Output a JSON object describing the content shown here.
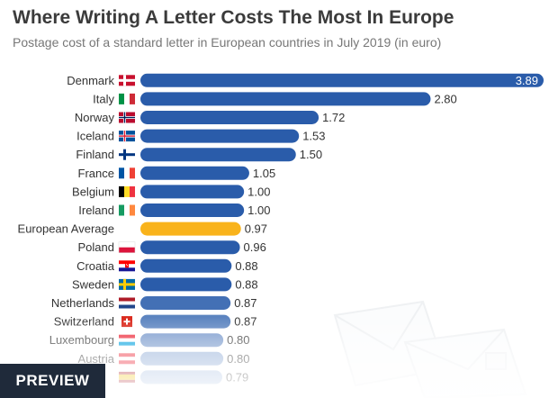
{
  "header": {
    "title": "Where Writing A Letter Costs The Most In Europe",
    "subtitle": "Postage cost of a standard letter in European countries in July 2019 (in euro)"
  },
  "badge": {
    "label": "PREVIEW"
  },
  "colors": {
    "bar": "#2a5caa",
    "highlight": "#f9b31b",
    "label": "#333333",
    "value": "#333333"
  },
  "chart_data": {
    "type": "bar",
    "orientation": "horizontal",
    "title": "Where Writing A Letter Costs The Most In Europe",
    "subtitle": "Postage cost of a standard letter in European countries in July 2019 (in euro)",
    "xlabel": "",
    "ylabel": "",
    "xlim": [
      0,
      3.89
    ],
    "categories": [
      "Denmark",
      "Italy",
      "Norway",
      "Iceland",
      "Finland",
      "France",
      "Belgium",
      "Ireland",
      "European Average",
      "Poland",
      "Croatia",
      "Sweden",
      "Netherlands",
      "Switzerland",
      "Luxembourg",
      "Austria",
      ""
    ],
    "values": [
      3.89,
      2.8,
      1.72,
      1.53,
      1.5,
      1.05,
      1.0,
      1.0,
      0.97,
      0.96,
      0.88,
      0.88,
      0.87,
      0.87,
      0.8,
      0.8,
      0.79
    ],
    "value_labels": [
      "3.89",
      "2.80",
      "1.72",
      "1.53",
      "1.50",
      "1.05",
      "1.00",
      "1.00",
      "0.97",
      "0.96",
      "0.88",
      "0.88",
      "0.87",
      "0.87",
      "0.80",
      "0.80",
      "0.79"
    ],
    "highlight_category": "European Average",
    "flags": [
      "flag-denmark",
      "flag-italy",
      "flag-norway",
      "flag-iceland",
      "flag-finland",
      "flag-france",
      "flag-belgium",
      "flag-ireland",
      "",
      "flag-poland",
      "flag-croatia",
      "flag-sweden",
      "flag-netherlands",
      "flag-switzerland",
      "flag-luxembourg",
      "flag-austria",
      "flag-spain"
    ]
  }
}
